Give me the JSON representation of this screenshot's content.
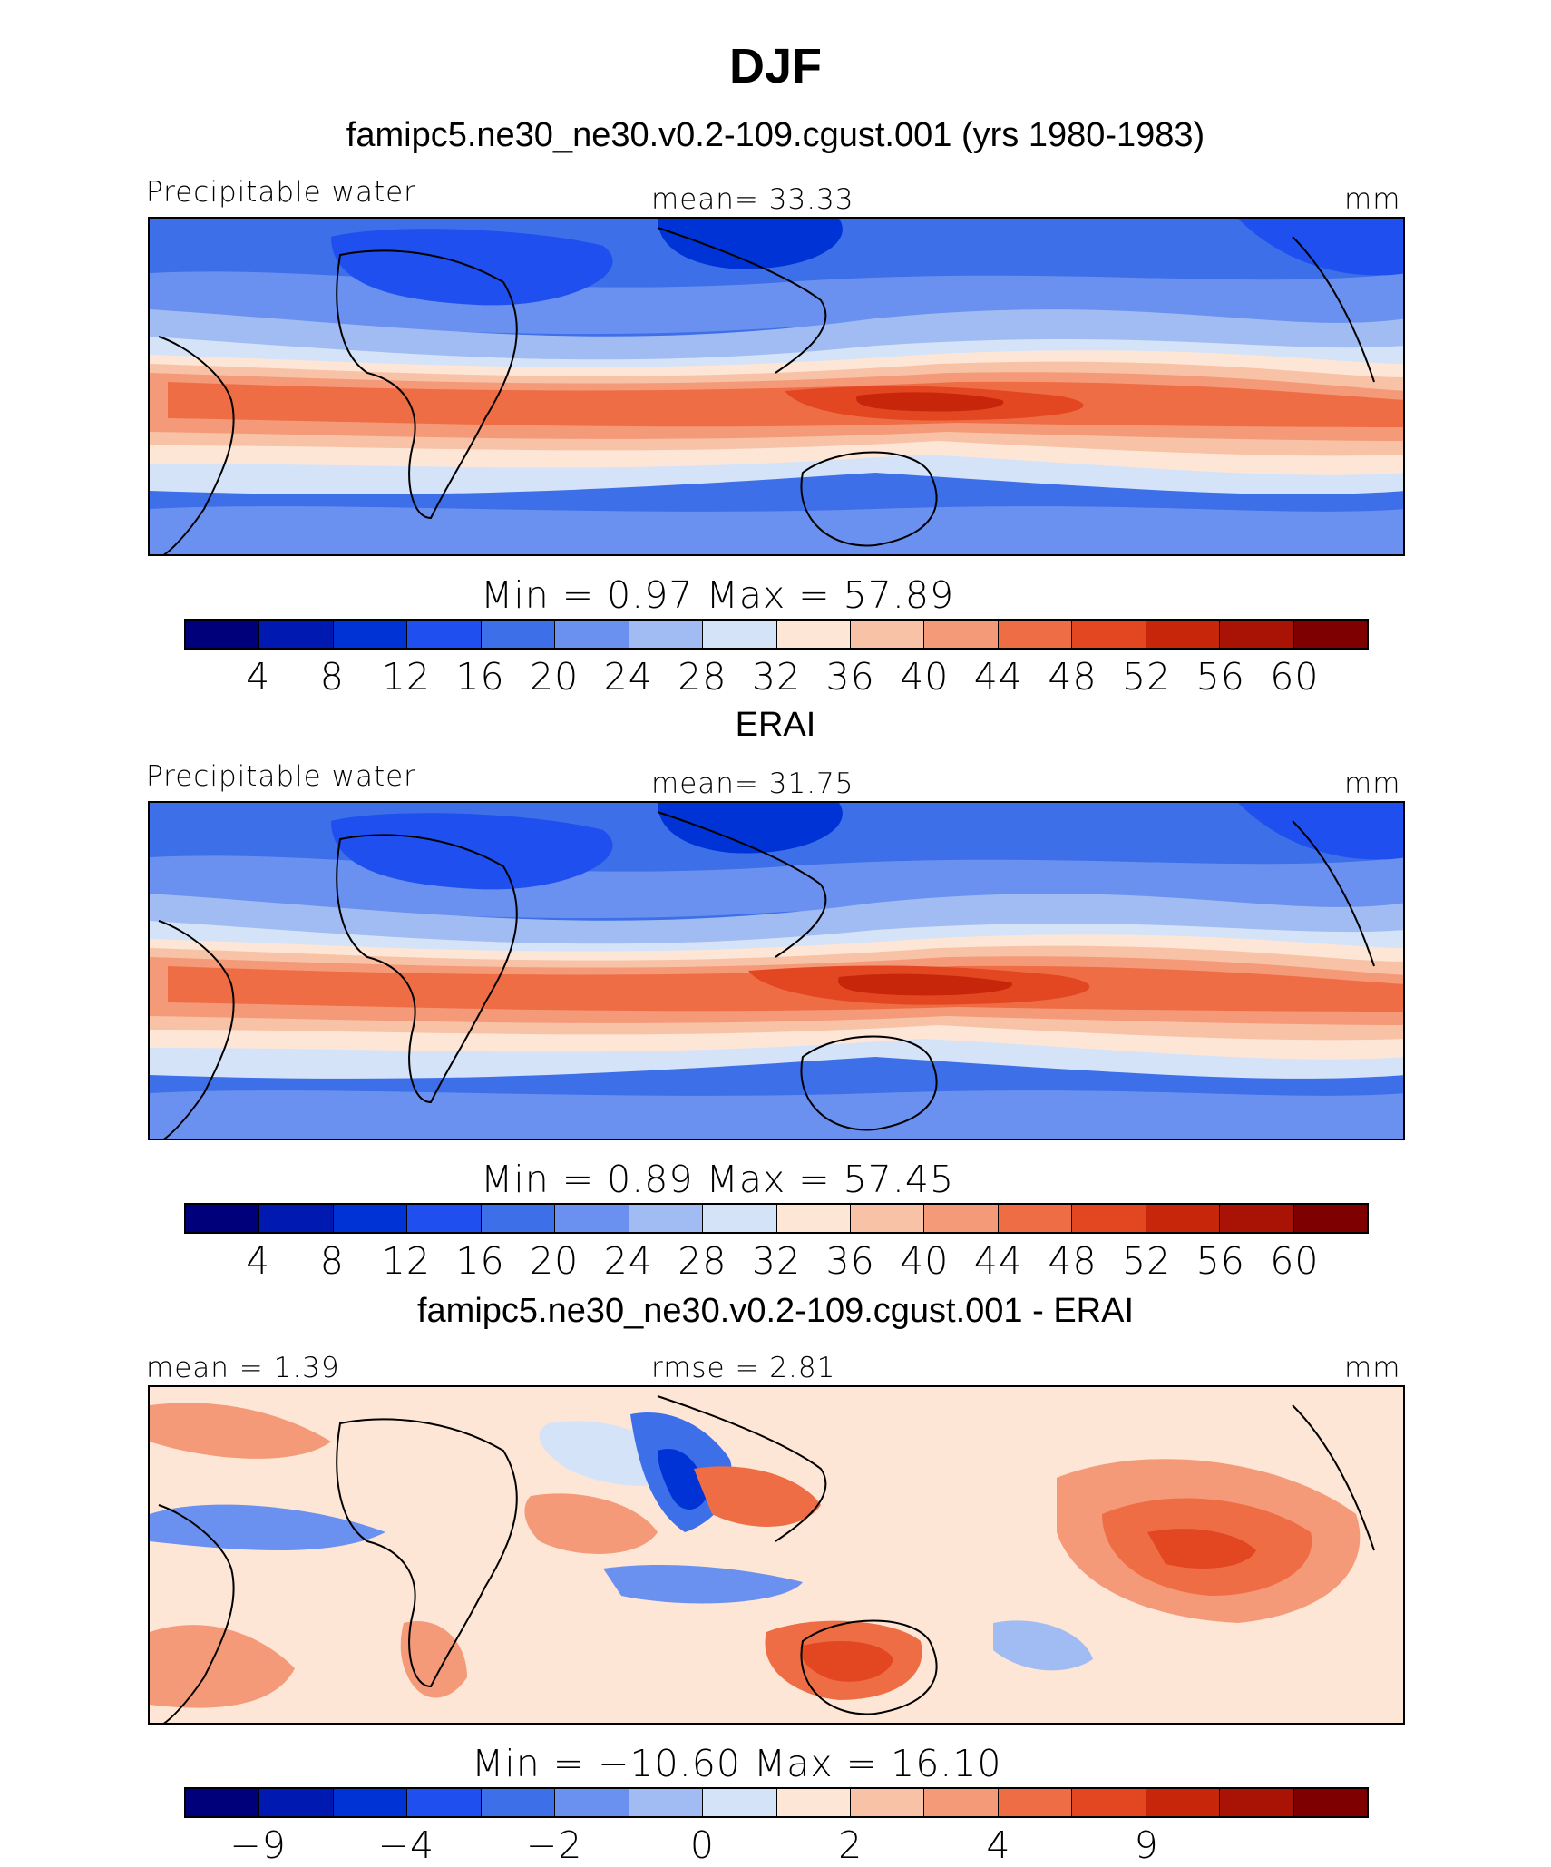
{
  "figure": {
    "title": "DJF",
    "unit": "mm"
  },
  "panels": [
    {
      "id": "model",
      "heading": "famipc5.ne30_ne30.v0.2-109.cgust.001 (yrs 1980-1983)",
      "left_label": "Precipitable water",
      "center_label": "mean=   33.33",
      "right_label": "mm",
      "minmax": "Min  =     0.97  Max  =    57.89",
      "colorbar_ticks": [
        "4",
        "8",
        "12",
        "16",
        "20",
        "24",
        "28",
        "32",
        "36",
        "40",
        "44",
        "48",
        "52",
        "56",
        "60"
      ]
    },
    {
      "id": "obs",
      "heading": "ERAI",
      "left_label": "Precipitable water",
      "center_label": "mean=   31.75",
      "right_label": "mm",
      "minmax": "Min  =     0.89  Max  =    57.45",
      "colorbar_ticks": [
        "4",
        "8",
        "12",
        "16",
        "20",
        "24",
        "28",
        "32",
        "36",
        "40",
        "44",
        "48",
        "52",
        "56",
        "60"
      ]
    },
    {
      "id": "diff",
      "heading": "famipc5.ne30_ne30.v0.2-109.cgust.001 - ERAI",
      "left_label": "mean =    1.39",
      "center_label": "rmse =    2.81",
      "right_label": "mm",
      "minmax": "Min  = −10.60  Max  =    16.10",
      "colorbar_ticks": [
        "−9",
        "−4",
        "−2",
        "0",
        "2",
        "4",
        "9"
      ]
    }
  ],
  "chart_data": [
    {
      "type": "heatmap",
      "title": "famipc5.ne30_ne30.v0.2-109.cgust.001 (yrs 1980-1983)",
      "variable": "Precipitable water",
      "units": "mm",
      "mean": 33.33,
      "min": 0.97,
      "max": 57.89,
      "levels": [
        4,
        8,
        12,
        16,
        20,
        24,
        28,
        32,
        36,
        40,
        44,
        48,
        52,
        56,
        60
      ]
    },
    {
      "type": "heatmap",
      "title": "ERAI",
      "variable": "Precipitable water",
      "units": "mm",
      "mean": 31.75,
      "min": 0.89,
      "max": 57.45,
      "levels": [
        4,
        8,
        12,
        16,
        20,
        24,
        28,
        32,
        36,
        40,
        44,
        48,
        52,
        56,
        60
      ]
    },
    {
      "type": "heatmap",
      "title": "famipc5.ne30_ne30.v0.2-109.cgust.001 - ERAI",
      "units": "mm",
      "mean": 1.39,
      "rmse": 2.81,
      "min": -10.6,
      "max": 16.1,
      "levels": [
        -9,
        -4,
        -2,
        0,
        2,
        4,
        9
      ]
    }
  ],
  "colors": {
    "full_scale": [
      "#00007a",
      "#0019b0",
      "#0033d6",
      "#1f4fef",
      "#3d6fe8",
      "#6a91ef",
      "#a1bcf2",
      "#d5e3f8",
      "#fde6d6",
      "#f8c2a6",
      "#f49a79",
      "#ef6d45",
      "#e24721",
      "#c8260b",
      "#a81306",
      "#7e0000"
    ],
    "diff_scale": [
      "#00007a",
      "#0019b0",
      "#0033d6",
      "#1f4fef",
      "#3d6fe8",
      "#6a91ef",
      "#a1bcf2",
      "#d5e3f8",
      "#fde6d6",
      "#f8c2a6",
      "#f49a79",
      "#ef6d45",
      "#e24721",
      "#c8260b",
      "#a81306",
      "#7e0000"
    ]
  }
}
